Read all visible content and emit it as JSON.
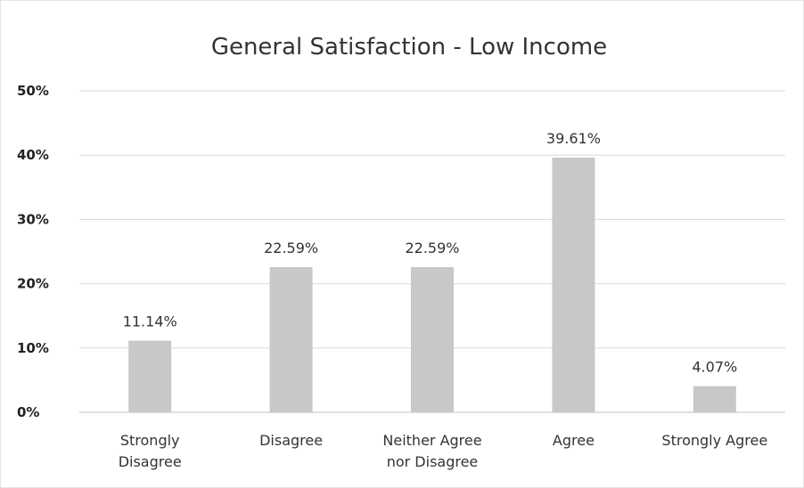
{
  "chart_data": {
    "type": "bar",
    "title": "General Satisfaction - Low Income",
    "categories": [
      [
        "Strongly",
        "Disagree"
      ],
      [
        "Disagree"
      ],
      [
        "Neither Agree",
        "nor Disagree"
      ],
      [
        "Agree"
      ],
      [
        "Strongly Agree"
      ]
    ],
    "values": [
      11.14,
      22.59,
      22.59,
      39.61,
      4.07
    ],
    "data_labels": [
      "11.14%",
      "22.59%",
      "22.59%",
      "39.61%",
      "4.07%"
    ],
    "ylim": [
      0,
      50
    ],
    "yticks": [
      0,
      10,
      20,
      30,
      40,
      50
    ],
    "ytick_labels": [
      "0%",
      "10%",
      "20%",
      "30%",
      "40%",
      "50%"
    ],
    "xlabel": "",
    "ylabel": "",
    "grid": true,
    "legend": "none",
    "colors": {
      "bar": "#c8c8c8",
      "grid": "#d9d9d9",
      "text": "#333333"
    }
  }
}
